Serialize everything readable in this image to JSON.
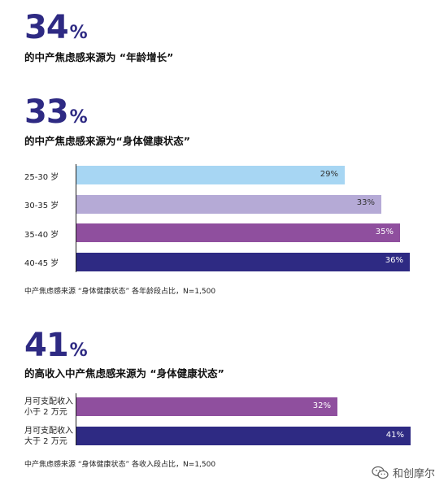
{
  "stats": [
    {
      "value": "34",
      "unit": "%",
      "caption": "的中产焦虑感来源为 “年龄增长”"
    },
    {
      "value": "33",
      "unit": "%",
      "caption": "的中产焦虑感来源为“身体健康状态”"
    },
    {
      "value": "41",
      "unit": "%",
      "caption": "的高收入中产焦虑感来源为 “身体健康状态”"
    }
  ],
  "chart_data": [
    {
      "type": "bar",
      "orientation": "horizontal",
      "categories": [
        "25-30 岁",
        "30-35 岁",
        "35-40 岁",
        "40-45 岁"
      ],
      "values": [
        29,
        33,
        35,
        36
      ],
      "value_labels": [
        "29%",
        "33%",
        "35%",
        "36%"
      ],
      "colors": [
        "#a7d6f3",
        "#b5aad6",
        "#8f4f9e",
        "#2e2a83"
      ],
      "label_colors": [
        "#333333",
        "#333333",
        "#ffffff",
        "#ffffff"
      ],
      "xlim": [
        0,
        37
      ],
      "note": "中产焦虑感来源 “身体健康状态” 各年龄段占比，N=1,500"
    },
    {
      "type": "bar",
      "orientation": "horizontal",
      "categories": [
        [
          "月可支配收入",
          "小于 2 万元"
        ],
        [
          "月可支配收入",
          "大于 2 万元"
        ]
      ],
      "values": [
        32,
        41
      ],
      "value_labels": [
        "32%",
        "41%"
      ],
      "colors": [
        "#8f4f9e",
        "#2e2a83"
      ],
      "label_colors": [
        "#ffffff",
        "#ffffff"
      ],
      "xlim": [
        0,
        41
      ],
      "note": "中产焦虑感来源 “身体健康状态” 各收入段占比，N=1,500"
    }
  ],
  "watermark": {
    "brand": "和创摩尔",
    "icon": "wechat-icon"
  }
}
